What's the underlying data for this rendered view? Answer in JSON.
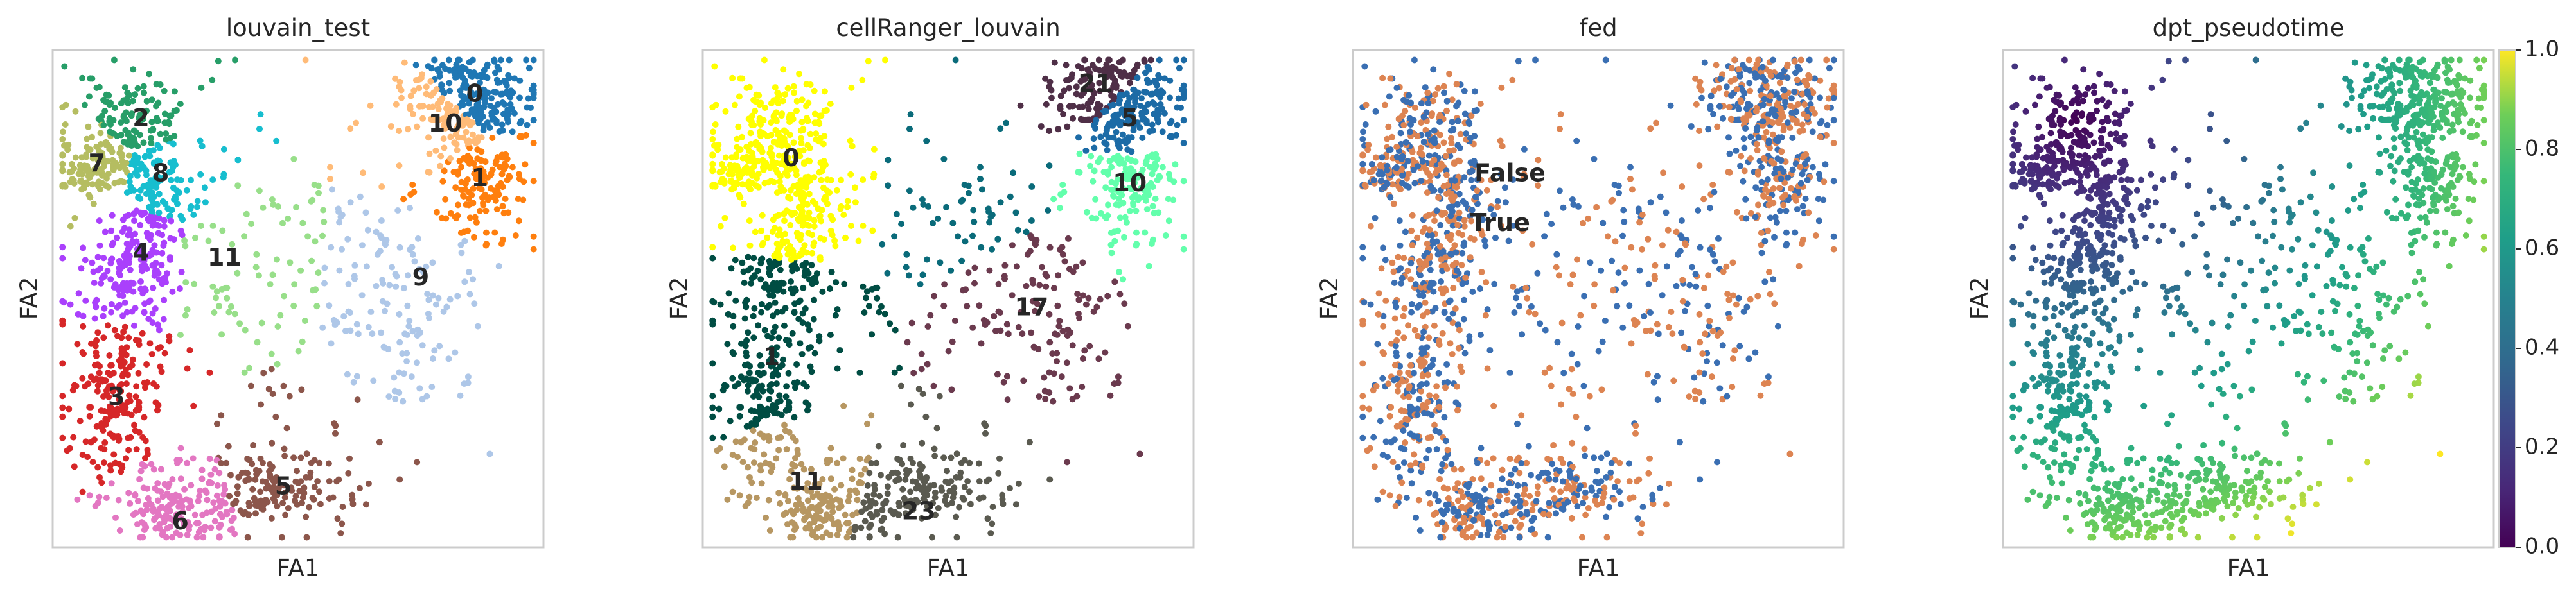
{
  "chart_data": [
    {
      "type": "scatter",
      "title": "louvain_test",
      "xlabel": "FA1",
      "ylabel": "FA2",
      "color_by": "categorical",
      "categories": [
        {
          "label": "0",
          "color": "#1f77b4",
          "pos": [
            0.86,
            0.09
          ]
        },
        {
          "label": "1",
          "color": "#ff7f0e",
          "pos": [
            0.87,
            0.26
          ]
        },
        {
          "label": "2",
          "color": "#279e68",
          "pos": [
            0.18,
            0.14
          ]
        },
        {
          "label": "3",
          "color": "#d62728",
          "pos": [
            0.13,
            0.7
          ]
        },
        {
          "label": "4",
          "color": "#aa40fc",
          "pos": [
            0.18,
            0.41
          ]
        },
        {
          "label": "5",
          "color": "#8c564b",
          "pos": [
            0.47,
            0.88
          ]
        },
        {
          "label": "6",
          "color": "#e377c2",
          "pos": [
            0.26,
            0.95
          ]
        },
        {
          "label": "7",
          "color": "#b5bd61",
          "pos": [
            0.09,
            0.23
          ]
        },
        {
          "label": "8",
          "color": "#17becf",
          "pos": [
            0.22,
            0.25
          ]
        },
        {
          "label": "9",
          "color": "#aec7e8",
          "pos": [
            0.75,
            0.46
          ]
        },
        {
          "label": "10",
          "color": "#ffbb78",
          "pos": [
            0.8,
            0.15
          ]
        },
        {
          "label": "11",
          "color": "#98df8a",
          "pos": [
            0.35,
            0.42
          ]
        }
      ]
    },
    {
      "type": "scatter",
      "title": "cellRanger_louvain",
      "xlabel": "FA1",
      "ylabel": "FA2",
      "color_by": "categorical",
      "categories": [
        {
          "label": "0",
          "color": "#ffff00",
          "pos": [
            0.18,
            0.22
          ]
        },
        {
          "label": "5",
          "color": "#1c6ba6",
          "pos": [
            0.87,
            0.14
          ]
        },
        {
          "label": "10",
          "color": "#63ffac",
          "pos": [
            0.87,
            0.27
          ]
        },
        {
          "label": "11",
          "color": "#b79762",
          "pos": [
            0.21,
            0.87
          ]
        },
        {
          "label": "17",
          "color": "#6b3a4e",
          "pos": [
            0.67,
            0.52
          ]
        },
        {
          "label": "21",
          "color": "#4f2f47",
          "pos": [
            0.8,
            0.07
          ]
        },
        {
          "label": "23",
          "color": "#5a5a50",
          "pos": [
            0.44,
            0.93
          ]
        },
        {
          "label": "1",
          "color": "#004d43",
          "pos": [
            0.14,
            0.62
          ]
        },
        {
          "label": "",
          "color": "#0a6b7a",
          "pos": [
            0.55,
            0.28
          ]
        }
      ]
    },
    {
      "type": "scatter",
      "title": "fed",
      "xlabel": "FA1",
      "ylabel": "FA2",
      "color_by": "categorical",
      "categories": [
        {
          "label": "False",
          "color": "#3a6fb3",
          "pos": [
            0.32,
            0.25
          ]
        },
        {
          "label": "True",
          "color": "#dd8452",
          "pos": [
            0.3,
            0.35
          ]
        }
      ]
    },
    {
      "type": "scatter",
      "title": "dpt_pseudotime",
      "xlabel": "FA1",
      "ylabel": "FA2",
      "color_by": "continuous",
      "colormap": "viridis",
      "colorbar": {
        "ticks": [
          "0.0",
          "0.2",
          "0.4",
          "0.6",
          "0.8",
          "1.0"
        ],
        "range": [
          0,
          1
        ]
      }
    }
  ]
}
